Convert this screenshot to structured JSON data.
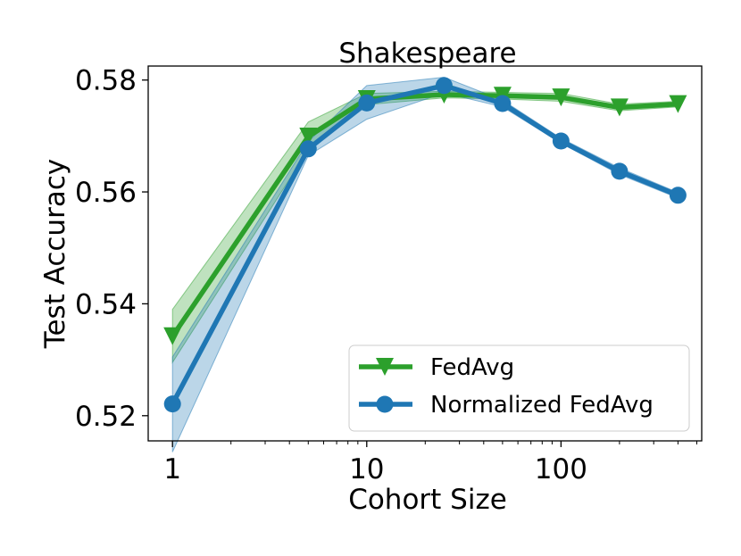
{
  "chart_data": {
    "type": "line",
    "title": "Shakespeare",
    "xlabel": "Cohort Size",
    "ylabel": "Test Accuracy",
    "x_scale": "log",
    "xlim": [
      0.75,
      530
    ],
    "ylim": [
      0.5155,
      0.5825
    ],
    "x_ticks": [
      {
        "value": 1,
        "label": "1"
      },
      {
        "value": 10,
        "label": "10"
      },
      {
        "value": 100,
        "label": "100"
      }
    ],
    "y_ticks": [
      {
        "value": 0.52,
        "label": "0.52"
      },
      {
        "value": 0.54,
        "label": "0.54"
      },
      {
        "value": 0.56,
        "label": "0.56"
      },
      {
        "value": 0.58,
        "label": "0.58"
      }
    ],
    "grid": false,
    "legend_position": "bottom-right",
    "series": [
      {
        "name": "FedAvg",
        "color": "#2ca02c",
        "marker": "triangle-down",
        "x": [
          1,
          5,
          10,
          25,
          50,
          100,
          200,
          400
        ],
        "y": [
          0.5342,
          0.5699,
          0.5766,
          0.5774,
          0.5772,
          0.5769,
          0.5751,
          0.5757
        ],
        "lower": [
          0.5295,
          0.5675,
          0.5756,
          0.5768,
          0.5766,
          0.5762,
          0.5745,
          0.5752
        ],
        "upper": [
          0.539,
          0.5725,
          0.5776,
          0.578,
          0.5778,
          0.5776,
          0.5757,
          0.5762
        ]
      },
      {
        "name": "Normalized FedAvg",
        "color": "#1f77b4",
        "marker": "circle",
        "x": [
          1,
          5,
          10,
          25,
          50,
          100,
          200,
          400
        ],
        "y": [
          0.5221,
          0.5677,
          0.5759,
          0.579,
          0.5758,
          0.5691,
          0.5637,
          0.5594
        ],
        "lower": [
          0.5135,
          0.5665,
          0.573,
          0.5777,
          0.5752,
          0.5687,
          0.5631,
          0.5589
        ],
        "upper": [
          0.5305,
          0.569,
          0.579,
          0.5805,
          0.5764,
          0.5696,
          0.5643,
          0.5599
        ]
      }
    ]
  }
}
